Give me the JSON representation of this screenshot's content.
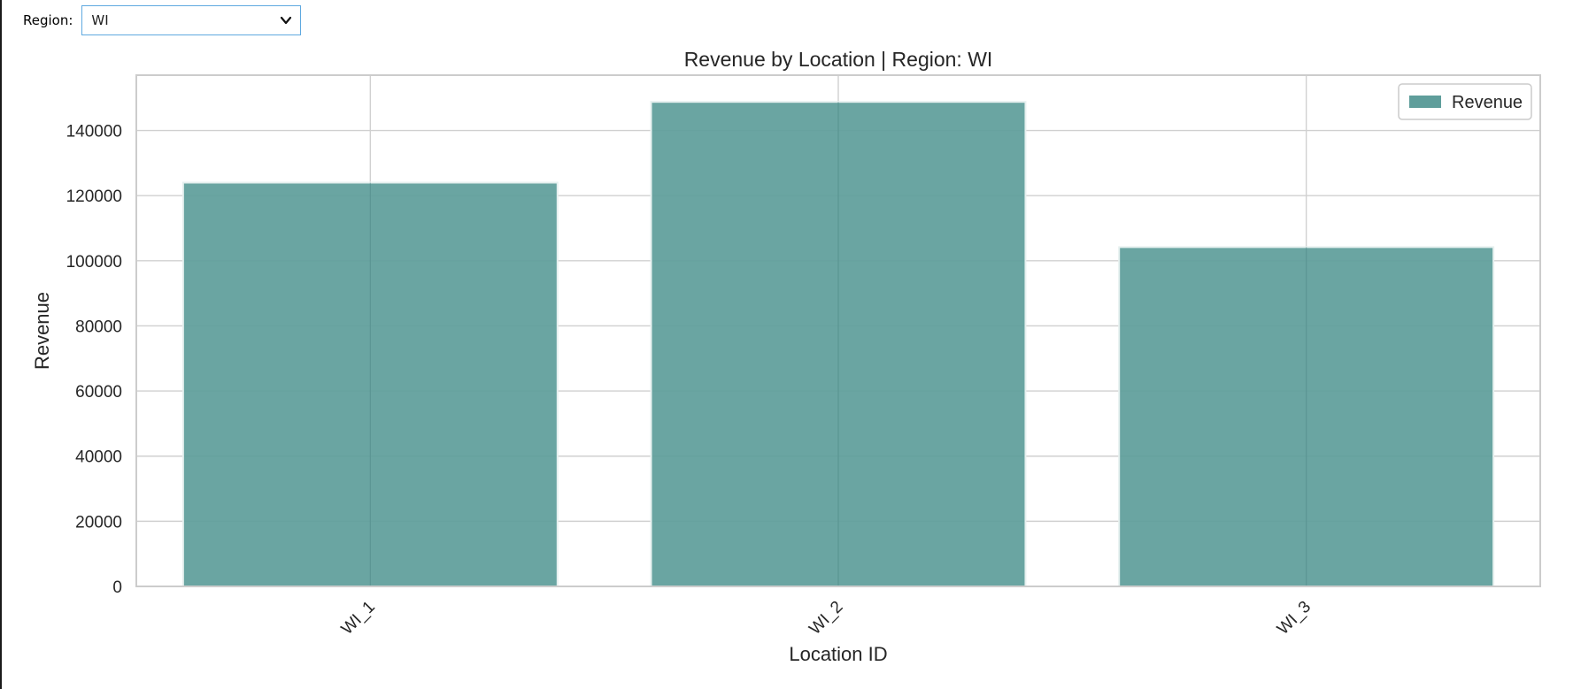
{
  "controls": {
    "region_label": "Region:",
    "region_value": "WI"
  },
  "chart_data": {
    "type": "bar",
    "title": "Revenue by Location | Region: WI",
    "xlabel": "Location ID",
    "ylabel": "Revenue",
    "categories": [
      "WI_1",
      "WI_2",
      "WI_3"
    ],
    "series": [
      {
        "name": "Revenue",
        "values": [
          124000,
          148800,
          104200
        ]
      }
    ],
    "ylim": [
      0,
      157000
    ],
    "yticks": [
      0,
      20000,
      40000,
      60000,
      80000,
      100000,
      120000,
      140000
    ],
    "grid": true,
    "legend": "top-right",
    "colors": {
      "bar": "#5f9e9b",
      "bar_edge": "#e6f0ef",
      "grid": "#d0d0d0",
      "frame": "#cccccc"
    }
  }
}
